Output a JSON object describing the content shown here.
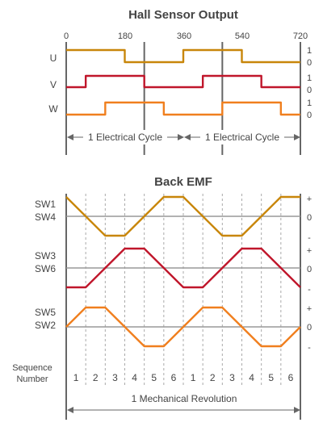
{
  "colors": {
    "u": "#c8860a",
    "v": "#c0162b",
    "w": "#f07f1e",
    "axis": "#666666",
    "grid": "#aaaaaa",
    "ref": "#999999",
    "text": "#444444"
  },
  "hall": {
    "title": "Hall Sensor Output",
    "degree_labels": [
      "0",
      "180",
      "360",
      "540",
      "720"
    ],
    "level_high": "1",
    "level_low": "0",
    "signals": [
      {
        "name": "U",
        "color_key": "u",
        "levels": [
          1,
          1,
          1,
          0,
          0,
          0,
          1,
          1,
          1,
          0,
          0,
          0
        ]
      },
      {
        "name": "V",
        "color_key": "v",
        "levels": [
          0,
          1,
          1,
          1,
          0,
          0,
          0,
          1,
          1,
          1,
          0,
          0
        ]
      },
      {
        "name": "W",
        "color_key": "w",
        "levels": [
          0,
          0,
          1,
          1,
          1,
          0,
          0,
          0,
          1,
          1,
          1,
          0
        ]
      }
    ],
    "cycle_label": "1 Electrical Cycle",
    "cycle_label_2": "1 Electrical Cycle"
  },
  "emf": {
    "title": "Back EMF",
    "plus": "+",
    "zero": "0",
    "minus": "-",
    "phases": [
      {
        "top": "SW1",
        "bottom": "SW4",
        "color_key": "u",
        "values": [
          1,
          0,
          -1,
          -1,
          0,
          1,
          1,
          0,
          -1,
          -1,
          0,
          1,
          1
        ]
      },
      {
        "top": "SW3",
        "bottom": "SW6",
        "color_key": "v",
        "values": [
          -1,
          -1,
          0,
          1,
          1,
          0,
          -1,
          -1,
          0,
          1,
          1,
          0,
          -1
        ]
      },
      {
        "top": "SW5",
        "bottom": "SW2",
        "color_key": "w",
        "values": [
          0,
          1,
          1,
          0,
          -1,
          -1,
          0,
          1,
          1,
          0,
          -1,
          -1,
          0
        ]
      }
    ]
  },
  "sequence": {
    "label_line1": "Sequence",
    "label_line2": "Number",
    "numbers": [
      "1",
      "2",
      "3",
      "4",
      "5",
      "6",
      "1",
      "2",
      "3",
      "4",
      "5",
      "6"
    ]
  },
  "revolution_label": "1 Mechanical Revolution"
}
